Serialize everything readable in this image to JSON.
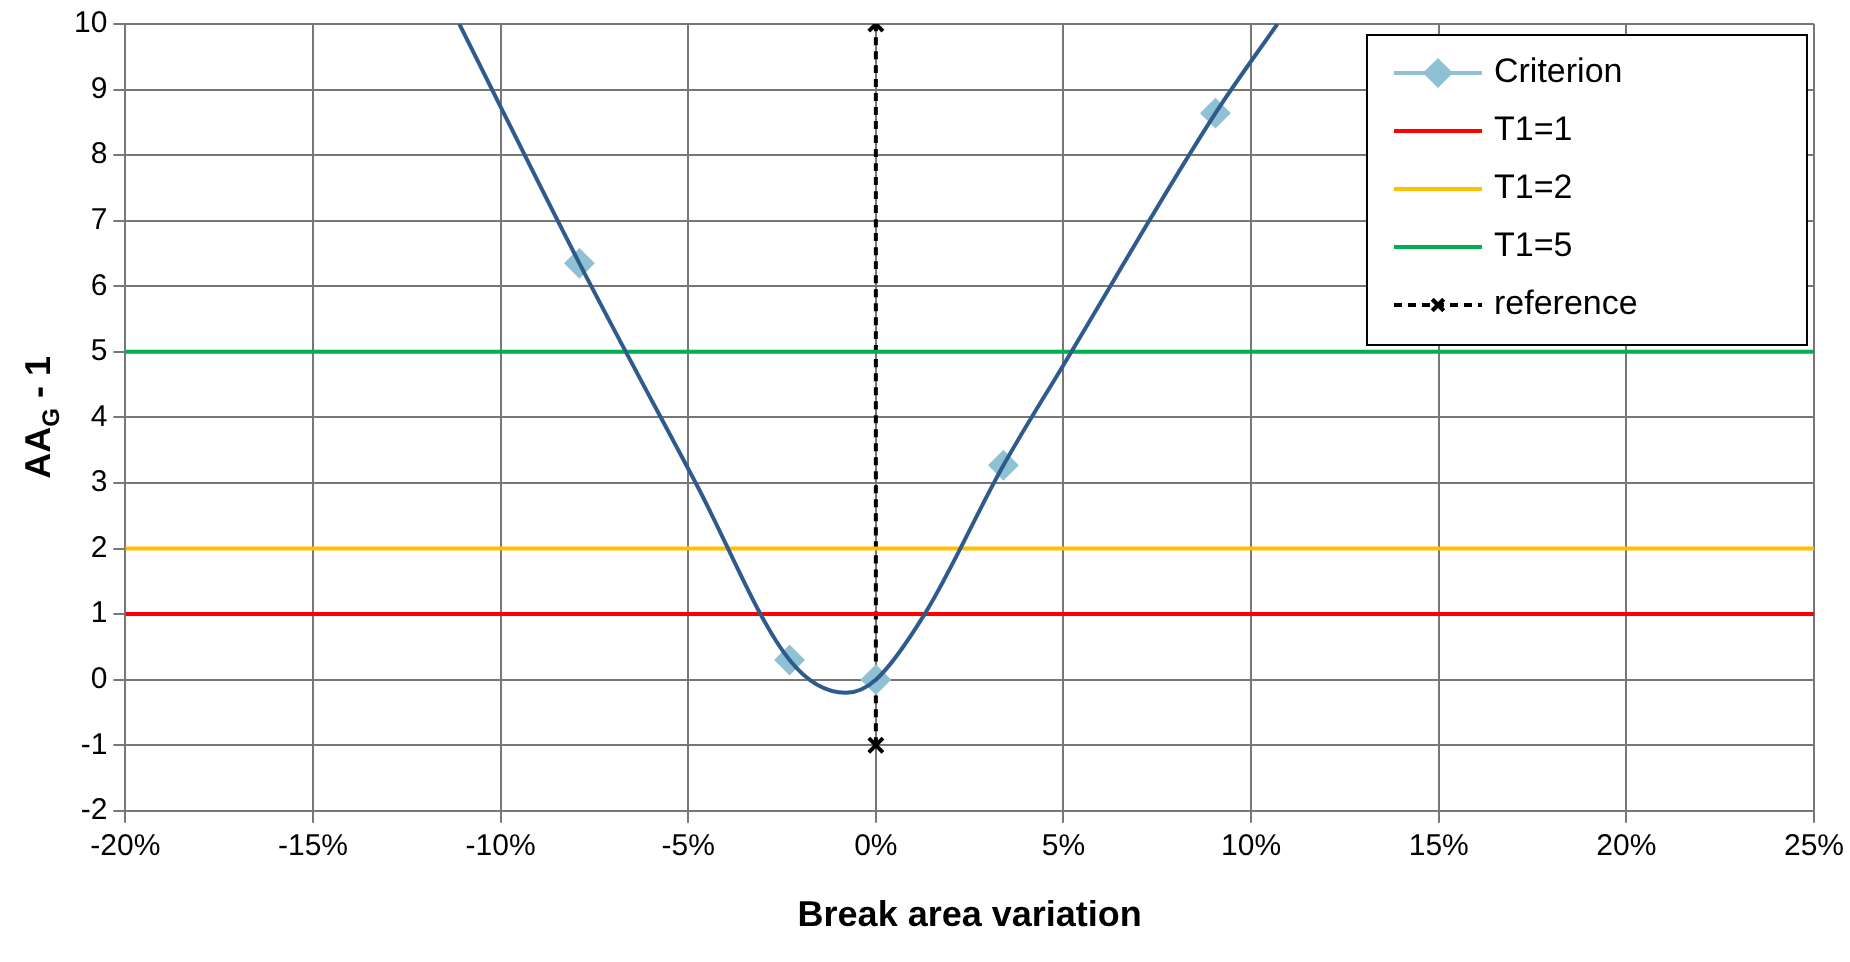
{
  "chart_data": {
    "type": "line",
    "xlabel": "Break area variation",
    "ylabel": "AA$_{G}$ - 1",
    "xlim": [
      -20,
      25
    ],
    "xticks": [
      {
        "value": -20,
        "label": "-20%"
      },
      {
        "value": -15,
        "label": "-15%"
      },
      {
        "value": -10,
        "label": "-10%"
      },
      {
        "value": -5,
        "label": "-5%"
      },
      {
        "value": 0,
        "label": "0%"
      },
      {
        "value": 5,
        "label": "5%"
      },
      {
        "value": 10,
        "label": "10%"
      },
      {
        "value": 15,
        "label": "15%"
      },
      {
        "value": 20,
        "label": "20%"
      },
      {
        "value": 25,
        "label": "25%"
      }
    ],
    "ylim": [
      -2,
      10
    ],
    "yticks": [
      -2,
      -1,
      0,
      1,
      2,
      3,
      4,
      5,
      6,
      7,
      8,
      9,
      10
    ],
    "grid": true,
    "legend": "top right",
    "series": [
      {
        "type": "line",
        "color": "#2f5b8c",
        "marker": "none",
        "x": [
          -11.1,
          -7.9,
          -4.8,
          -2.3,
          -0.8,
          0,
          1.3,
          3.4,
          5,
          9.05,
          10.7
        ],
        "values": [
          10,
          6.35,
          3.0,
          0.3,
          -0.2,
          0,
          1,
          3.27,
          4.8,
          8.64,
          10
        ]
      },
      {
        "name": "Criterion",
        "type": "scatter",
        "color": "#8fc1d4",
        "marker": "diamond",
        "x": [
          -7.9,
          -2.3,
          0,
          3.4,
          9.05
        ],
        "values": [
          6.35,
          0.3,
          0,
          3.27,
          8.64
        ]
      },
      {
        "name": "T1=1",
        "type": "line",
        "color": "#ff0000",
        "marker": "none",
        "x": [
          -20,
          25
        ],
        "values": [
          1,
          1
        ]
      },
      {
        "name": "T1=2",
        "type": "line",
        "color": "#ffc000",
        "marker": "none",
        "x": [
          -20,
          25
        ],
        "values": [
          2,
          2
        ]
      },
      {
        "name": "T1=5",
        "type": "line",
        "color": "#00b050",
        "marker": "none",
        "x": [
          -20,
          25
        ],
        "values": [
          5,
          5
        ]
      },
      {
        "name": "reference",
        "type": "line",
        "color": "#000000",
        "marker": "cross",
        "line_style": "dashed",
        "x": [
          0,
          0
        ],
        "values": [
          -1,
          10
        ]
      }
    ]
  }
}
